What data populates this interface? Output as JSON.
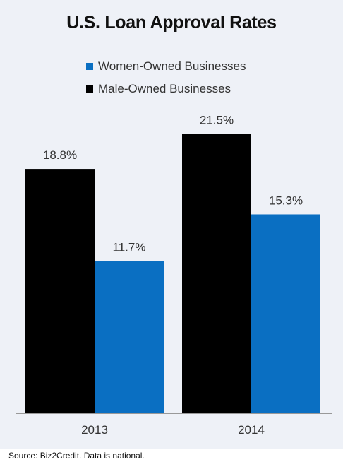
{
  "chart_data": {
    "type": "bar",
    "title": "U.S. Loan Approval Rates",
    "categories": [
      "2013",
      "2014"
    ],
    "series": [
      {
        "name": "Male-Owned Businesses",
        "values": [
          18.8,
          21.5
        ],
        "labels": [
          "18.8%",
          "21.5%"
        ],
        "color": "#000000"
      },
      {
        "name": "Women-Owned Businesses",
        "values": [
          11.7,
          15.3
        ],
        "labels": [
          "11.7%",
          "15.3%"
        ],
        "color": "#0a6fc2"
      }
    ],
    "legend": {
      "placement": "top",
      "order": [
        "Women-Owned Businesses",
        "Male-Owned Businesses"
      ]
    },
    "xlabel": "",
    "ylabel": "",
    "ylim": [
      0,
      30
    ],
    "grid": false
  },
  "legend_items": [
    {
      "label": "Women-Owned Businesses",
      "color": "#0a6fc2"
    },
    {
      "label": "Male-Owned Businesses",
      "color": "#000000"
    }
  ],
  "source": "Source: Biz2Credit. Data is national.",
  "colors": {
    "background": "#eef1f7",
    "axis": "#999999"
  }
}
